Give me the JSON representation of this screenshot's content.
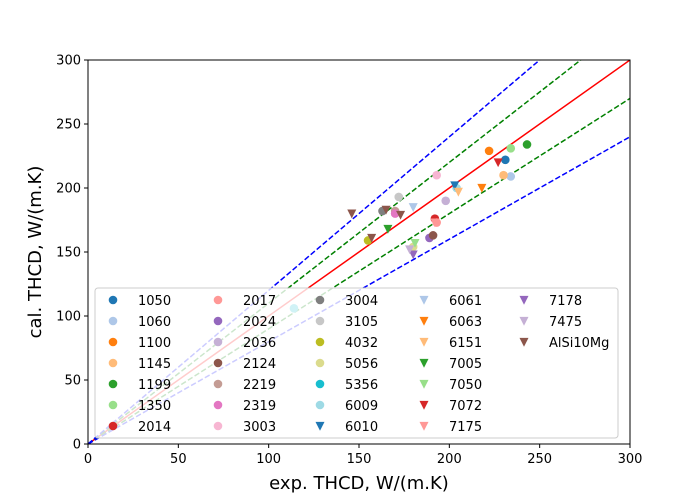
{
  "chart_data": {
    "type": "scatter",
    "xlabel": "exp. THCD, W/(m.K)",
    "ylabel": "cal. THCD, W/(m.K)",
    "xlim": [
      0,
      300
    ],
    "ylim": [
      0,
      300
    ],
    "xticks": [
      "0",
      "50",
      "100",
      "150",
      "200",
      "250",
      "300"
    ],
    "yticks": [
      "0",
      "50",
      "100",
      "150",
      "200",
      "250",
      "300"
    ],
    "grid": false,
    "legend_position": "lower-right",
    "legend_columns": 5,
    "reference_lines": [
      {
        "slope": 1.0,
        "color": "#ff0000",
        "style": "solid"
      },
      {
        "slope": 1.1,
        "color": "#008000",
        "style": "dashed"
      },
      {
        "slope": 0.9,
        "color": "#008000",
        "style": "dashed"
      },
      {
        "slope": 1.2,
        "color": "#0000ff",
        "style": "dashed"
      },
      {
        "slope": 0.8,
        "color": "#0000ff",
        "style": "dashed"
      }
    ],
    "series": [
      {
        "name": "1050",
        "color": "#1f77b4",
        "marker": "circle",
        "points": [
          [
            231,
            222
          ]
        ]
      },
      {
        "name": "1060",
        "color": "#aec7e8",
        "marker": "circle",
        "points": [
          [
            234,
            209
          ]
        ]
      },
      {
        "name": "1100",
        "color": "#ff7f0e",
        "marker": "circle",
        "points": [
          [
            222,
            229
          ]
        ]
      },
      {
        "name": "1145",
        "color": "#ffbb78",
        "marker": "circle",
        "points": [
          [
            230,
            210
          ]
        ]
      },
      {
        "name": "1199",
        "color": "#2ca02c",
        "marker": "circle",
        "points": [
          [
            243,
            234
          ]
        ]
      },
      {
        "name": "1350",
        "color": "#98df8a",
        "marker": "circle",
        "points": [
          [
            234,
            231
          ]
        ]
      },
      {
        "name": "2014",
        "color": "#d62728",
        "marker": "circle",
        "points": [
          [
            192,
            176
          ]
        ]
      },
      {
        "name": "2017",
        "color": "#ff9896",
        "marker": "circle",
        "points": [
          [
            193,
            173
          ]
        ]
      },
      {
        "name": "2024",
        "color": "#9467bd",
        "marker": "circle",
        "points": [
          [
            189,
            161
          ]
        ]
      },
      {
        "name": "2036",
        "color": "#c5b0d5",
        "marker": "circle",
        "points": [
          [
            198,
            190
          ]
        ]
      },
      {
        "name": "2124",
        "color": "#8c564b",
        "marker": "circle",
        "points": [
          [
            191,
            163
          ]
        ]
      },
      {
        "name": "2219",
        "color": "#c49c94",
        "marker": "circle",
        "points": [
          [
            170,
            182
          ]
        ]
      },
      {
        "name": "2319",
        "color": "#e377c2",
        "marker": "circle",
        "points": [
          [
            170,
            180
          ]
        ]
      },
      {
        "name": "3003",
        "color": "#f7b6d2",
        "marker": "circle",
        "points": [
          [
            193,
            210
          ]
        ]
      },
      {
        "name": "3004",
        "color": "#7f7f7f",
        "marker": "circle",
        "points": [
          [
            163,
            182
          ]
        ]
      },
      {
        "name": "3105",
        "color": "#c7c7c7",
        "marker": "circle",
        "points": [
          [
            172,
            193
          ]
        ]
      },
      {
        "name": "4032",
        "color": "#bcbd22",
        "marker": "circle",
        "points": [
          [
            155,
            159
          ]
        ]
      },
      {
        "name": "5056",
        "color": "#dbdb8d",
        "marker": "circle",
        "points": [
          [
            180,
            154
          ]
        ]
      },
      {
        "name": "5356",
        "color": "#17becf",
        "marker": "circle",
        "points": [
          [
            114,
            106
          ]
        ]
      },
      {
        "name": "6009",
        "color": "#9edae5",
        "marker": "circle",
        "points": [
          [
            204,
            200
          ]
        ]
      },
      {
        "name": "6010",
        "color": "#1f77b4",
        "marker": "triangle-down",
        "points": [
          [
            203,
            202
          ]
        ]
      },
      {
        "name": "6061",
        "color": "#aec7e8",
        "marker": "triangle-down",
        "points": [
          [
            180,
            185
          ]
        ]
      },
      {
        "name": "6063",
        "color": "#ff7f0e",
        "marker": "triangle-down",
        "points": [
          [
            218,
            200
          ]
        ]
      },
      {
        "name": "6151",
        "color": "#ffbb78",
        "marker": "triangle-down",
        "points": [
          [
            205,
            197
          ]
        ]
      },
      {
        "name": "7005",
        "color": "#2ca02c",
        "marker": "triangle-down",
        "points": [
          [
            166,
            168
          ]
        ]
      },
      {
        "name": "7050",
        "color": "#98df8a",
        "marker": "triangle-down",
        "points": [
          [
            181,
            157
          ]
        ]
      },
      {
        "name": "7072",
        "color": "#d62728",
        "marker": "triangle-down",
        "points": [
          [
            227,
            220
          ]
        ]
      },
      {
        "name": "7175",
        "color": "#ff9896",
        "marker": "triangle-down",
        "points": [
          [
            192,
            173
          ]
        ]
      },
      {
        "name": "7178",
        "color": "#9467bd",
        "marker": "triangle-down",
        "points": [
          [
            180,
            148
          ]
        ]
      },
      {
        "name": "7475",
        "color": "#c5b0d5",
        "marker": "triangle-down",
        "points": [
          [
            178,
            152
          ]
        ]
      },
      {
        "name": "AlSi10Mg",
        "color": "#8c564b",
        "marker": "triangle-down",
        "points": [
          [
            146,
            180
          ],
          [
            157,
            161
          ],
          [
            165,
            183
          ],
          [
            173,
            179
          ]
        ]
      }
    ]
  }
}
